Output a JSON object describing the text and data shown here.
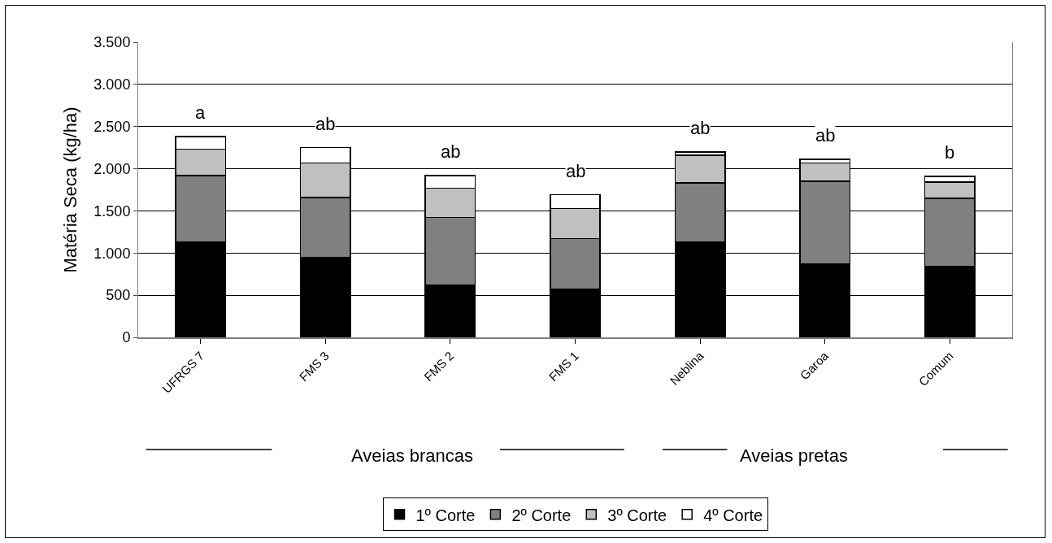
{
  "chart_data": {
    "type": "bar",
    "stacked": true,
    "ylabel": "Matéria Seca (kg/ha)",
    "categories": [
      "UFRGS 7",
      "FMS 3",
      "FMS 2",
      "FMS 1",
      "Neblina",
      "Garoa",
      "Comum"
    ],
    "series": [
      {
        "name": "1º Corte",
        "color": "#000000",
        "values": [
          1130,
          950,
          620,
          570,
          1130,
          870,
          840
        ]
      },
      {
        "name": "2º Corte",
        "color": "#808080",
        "values": [
          790,
          710,
          800,
          600,
          700,
          980,
          810
        ]
      },
      {
        "name": "3º Corte",
        "color": "#c0c0c0",
        "values": [
          310,
          410,
          350,
          360,
          330,
          220,
          190
        ]
      },
      {
        "name": "4º Corte",
        "color": "#ffffff",
        "values": [
          150,
          180,
          150,
          160,
          40,
          40,
          70
        ]
      }
    ],
    "ylim": [
      0,
      3500
    ],
    "yticks": [
      0,
      {
        "value": 500,
        "label": "500"
      },
      {
        "value": 1000,
        "label": "1.000"
      },
      {
        "value": 1500,
        "label": "1.500"
      },
      {
        "value": 2000,
        "label": "2.000"
      },
      {
        "value": 2500,
        "label": "2.500"
      },
      {
        "value": 3000,
        "label": "3.000"
      },
      {
        "value": 3500,
        "label": "3.500"
      }
    ],
    "grid": "y",
    "legend": "bottom",
    "annotations": [
      {
        "text": "a",
        "x": "UFRGS 7",
        "y": 2385
      },
      {
        "text": "ab",
        "x": "FMS 3",
        "y": 2250
      },
      {
        "text": "ab",
        "x": "FMS 2",
        "y": 1920
      },
      {
        "text": "ab",
        "x": "FMS 1",
        "y": 1690
      },
      {
        "text": "ab",
        "x": "Neblina",
        "y": 2200
      },
      {
        "text": "ab",
        "x": "Garoa",
        "y": 2110
      },
      {
        "text": "b",
        "x": "Comum",
        "y": 1910
      },
      "Aveias brancas",
      "Aveias pretas"
    ]
  }
}
